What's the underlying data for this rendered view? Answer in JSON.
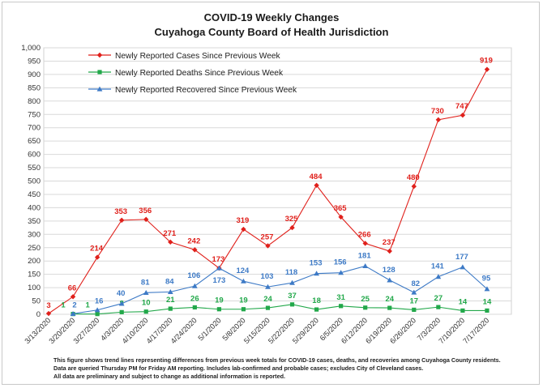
{
  "chart_data": {
    "type": "line",
    "title": "COVID-19 Weekly Changes",
    "subtitle": "Cuyahoga County Board of Health Jurisdiction",
    "xlabel": "",
    "ylabel": "",
    "ylim": [
      0,
      1000
    ],
    "y_ticks": [
      "0",
      "50",
      "100",
      "150",
      "200",
      "250",
      "300",
      "350",
      "400",
      "450",
      "500",
      "550",
      "600",
      "650",
      "700",
      "750",
      "800",
      "850",
      "900",
      "950",
      "1,000"
    ],
    "grid": "horizontal",
    "legend_position": "top-left",
    "x": [
      "3/13/2020",
      "3/20/2020",
      "3/27/2020",
      "4/3/2020",
      "4/10/2020",
      "4/17/2020",
      "4/24/2020",
      "5/1/2020",
      "5/8/2020",
      "5/15/2020",
      "5/22/2020",
      "5/29/2020",
      "6/5/2020",
      "6/12/2020",
      "6/19/2020",
      "6/26/2020",
      "7/3/2020",
      "7/10/2020",
      "7/17/2020"
    ],
    "series": [
      {
        "name": "Newly Reported Cases Since Previous Week",
        "color": "#e0201b",
        "marker": "diamond",
        "values": [
          3,
          66,
          214,
          353,
          356,
          271,
          242,
          173,
          319,
          257,
          325,
          484,
          365,
          266,
          237,
          480,
          730,
          747,
          919
        ],
        "labels": [
          "3",
          "66",
          "214",
          "353",
          "356",
          "271",
          "242",
          "173",
          "319",
          "257",
          "325",
          "484",
          "365",
          "266",
          "237",
          "480",
          "730",
          "747",
          "919"
        ]
      },
      {
        "name": "Newly Reported Deaths Since Previous Week",
        "color": "#22a84a",
        "marker": "square",
        "values": [
          null,
          1,
          1,
          8,
          10,
          21,
          26,
          19,
          19,
          24,
          37,
          18,
          31,
          25,
          24,
          17,
          27,
          14,
          14
        ],
        "labels": [
          null,
          "1",
          "1",
          "8",
          "10",
          "21",
          "26",
          "19",
          "19",
          "24",
          "37",
          "18",
          "31",
          "25",
          "24",
          "17",
          "27",
          "14",
          "14"
        ]
      },
      {
        "name": "Newly Reported Recovered Since Previous Week",
        "color": "#3d7ac6",
        "marker": "triangle",
        "values": [
          null,
          2,
          16,
          40,
          81,
          84,
          106,
          173,
          124,
          103,
          118,
          153,
          156,
          181,
          128,
          82,
          141,
          177,
          95
        ],
        "labels": [
          null,
          "2",
          "16",
          "40",
          "81",
          "84",
          "106",
          "173",
          "124",
          "103",
          "118",
          "153",
          "156",
          "181",
          "128",
          "82",
          "141",
          "177",
          "95"
        ]
      }
    ],
    "footnote": [
      "This figure shows trend lines representing differences from previous week totals for COVID-19 cases, deaths, and recoveries among Cuyahoga County residents.",
      "Data are queried Thursday PM for Friday AM reporting. Includes lab-confirmed and probable cases; excludes City of Cleveland cases.",
      "All data are preliminary and subject to change as additional information is reported."
    ]
  }
}
